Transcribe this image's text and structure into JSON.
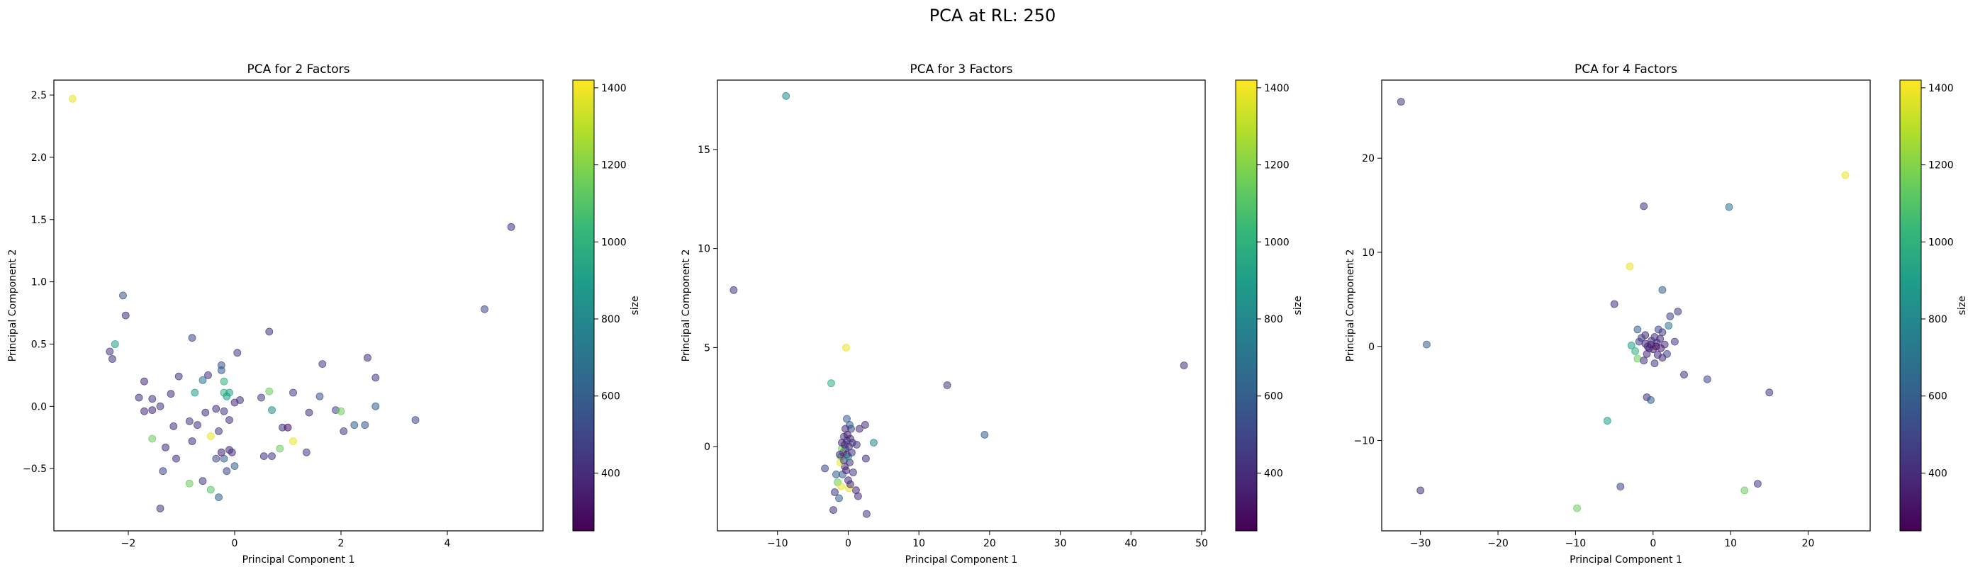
{
  "figure": {
    "title": "PCA at RL: 250"
  },
  "colormap": {
    "name": "viridis",
    "stops": [
      "#440154",
      "#482878",
      "#3e4989",
      "#31688e",
      "#26828e",
      "#1f9e89",
      "#35b779",
      "#6ece58",
      "#b5de2b",
      "#fde725"
    ]
  },
  "chart_data": [
    {
      "type": "scatter",
      "title": "PCA for 2 Factors",
      "xlabel": "Principal Component 1",
      "ylabel": "Principal Component 2",
      "xlim": [
        -3.4,
        5.8
      ],
      "ylim": [
        -1.0,
        2.62
      ],
      "xticks": [
        -2,
        0,
        2,
        4
      ],
      "yticks": [
        -0.5,
        0.0,
        0.5,
        1.0,
        1.5,
        2.0,
        2.5
      ],
      "yticklabels": [
        "−0.5",
        "0.0",
        "0.5",
        "1.0",
        "1.5",
        "2.0",
        "2.5"
      ],
      "xticklabels": [
        "−2",
        "0",
        "2",
        "4"
      ],
      "colorbar": {
        "label": "size",
        "range": [
          250,
          1420
        ],
        "ticks": [
          400,
          600,
          800,
          1000,
          1200,
          1400
        ]
      },
      "points": [
        {
          "x": -3.05,
          "y": 2.47,
          "c": 1380
        },
        {
          "x": 5.2,
          "y": 1.44,
          "c": 420
        },
        {
          "x": 4.7,
          "y": 0.78,
          "c": 500
        },
        {
          "x": -2.1,
          "y": 0.89,
          "c": 550
        },
        {
          "x": -2.05,
          "y": 0.73,
          "c": 400
        },
        {
          "x": -2.25,
          "y": 0.5,
          "c": 900
        },
        {
          "x": -2.35,
          "y": 0.44,
          "c": 450
        },
        {
          "x": -2.3,
          "y": 0.38,
          "c": 420
        },
        {
          "x": -1.7,
          "y": 0.2,
          "c": 400
        },
        {
          "x": -1.55,
          "y": 0.06,
          "c": 450
        },
        {
          "x": -1.8,
          "y": 0.07,
          "c": 420
        },
        {
          "x": -1.7,
          "y": -0.04,
          "c": 400
        },
        {
          "x": -1.55,
          "y": -0.03,
          "c": 380
        },
        {
          "x": -1.4,
          "y": 0.0,
          "c": 450
        },
        {
          "x": -1.55,
          "y": -0.26,
          "c": 1150
        },
        {
          "x": -1.3,
          "y": -0.33,
          "c": 400
        },
        {
          "x": -1.35,
          "y": -0.52,
          "c": 500
        },
        {
          "x": -1.4,
          "y": -0.82,
          "c": 450
        },
        {
          "x": -1.15,
          "y": -0.16,
          "c": 420
        },
        {
          "x": -1.1,
          "y": -0.42,
          "c": 400
        },
        {
          "x": -1.2,
          "y": 0.1,
          "c": 400
        },
        {
          "x": -1.05,
          "y": 0.24,
          "c": 420
        },
        {
          "x": -0.8,
          "y": 0.55,
          "c": 500
        },
        {
          "x": -0.85,
          "y": -0.12,
          "c": 450
        },
        {
          "x": -0.7,
          "y": -0.15,
          "c": 420
        },
        {
          "x": -0.75,
          "y": 0.11,
          "c": 900
        },
        {
          "x": -0.6,
          "y": 0.21,
          "c": 700
        },
        {
          "x": -0.5,
          "y": 0.25,
          "c": 420
        },
        {
          "x": -0.55,
          "y": -0.05,
          "c": 400
        },
        {
          "x": -0.45,
          "y": -0.24,
          "c": 1380
        },
        {
          "x": -0.6,
          "y": -0.6,
          "c": 450
        },
        {
          "x": -0.8,
          "y": -0.28,
          "c": 400
        },
        {
          "x": -0.85,
          "y": -0.62,
          "c": 1150
        },
        {
          "x": -0.45,
          "y": -0.67,
          "c": 1100
        },
        {
          "x": -0.3,
          "y": -0.73,
          "c": 600
        },
        {
          "x": -0.35,
          "y": -0.42,
          "c": 500
        },
        {
          "x": -0.3,
          "y": -0.2,
          "c": 450
        },
        {
          "x": -0.25,
          "y": 0.33,
          "c": 550
        },
        {
          "x": -0.25,
          "y": 0.29,
          "c": 600
        },
        {
          "x": -0.2,
          "y": 0.2,
          "c": 1000
        },
        {
          "x": -0.1,
          "y": 0.11,
          "c": 900
        },
        {
          "x": -0.35,
          "y": -0.02,
          "c": 420
        },
        {
          "x": -0.2,
          "y": -0.04,
          "c": 450
        },
        {
          "x": -0.1,
          "y": -0.11,
          "c": 400
        },
        {
          "x": -0.1,
          "y": -0.35,
          "c": 380
        },
        {
          "x": -0.2,
          "y": -0.42,
          "c": 600
        },
        {
          "x": -0.25,
          "y": -0.37,
          "c": 350
        },
        {
          "x": -0.15,
          "y": -0.52,
          "c": 500
        },
        {
          "x": 0.0,
          "y": -0.48,
          "c": 600
        },
        {
          "x": -0.05,
          "y": -0.37,
          "c": 420
        },
        {
          "x": 0.1,
          "y": 0.05,
          "c": 420
        },
        {
          "x": 0.0,
          "y": 0.03,
          "c": 400
        },
        {
          "x": 0.05,
          "y": 0.43,
          "c": 450
        },
        {
          "x": -0.2,
          "y": 0.11,
          "c": 1000
        },
        {
          "x": -0.15,
          "y": 0.08,
          "c": 900
        },
        {
          "x": 0.65,
          "y": 0.6,
          "c": 420
        },
        {
          "x": 0.5,
          "y": 0.07,
          "c": 450
        },
        {
          "x": 0.65,
          "y": 0.12,
          "c": 1150
        },
        {
          "x": 0.7,
          "y": -0.03,
          "c": 800
        },
        {
          "x": 0.55,
          "y": -0.4,
          "c": 420
        },
        {
          "x": 0.7,
          "y": -0.4,
          "c": 450
        },
        {
          "x": 0.85,
          "y": -0.34,
          "c": 1150
        },
        {
          "x": 0.9,
          "y": -0.17,
          "c": 420
        },
        {
          "x": 1.0,
          "y": -0.17,
          "c": 300
        },
        {
          "x": 1.1,
          "y": -0.28,
          "c": 1380
        },
        {
          "x": 1.1,
          "y": 0.11,
          "c": 450
        },
        {
          "x": 1.4,
          "y": -0.05,
          "c": 420
        },
        {
          "x": 1.35,
          "y": -0.37,
          "c": 450
        },
        {
          "x": 1.6,
          "y": 0.08,
          "c": 550
        },
        {
          "x": 1.65,
          "y": 0.34,
          "c": 450
        },
        {
          "x": 1.9,
          "y": -0.03,
          "c": 500
        },
        {
          "x": 2.0,
          "y": -0.04,
          "c": 1150
        },
        {
          "x": 2.05,
          "y": -0.2,
          "c": 450
        },
        {
          "x": 2.25,
          "y": -0.15,
          "c": 600
        },
        {
          "x": 2.45,
          "y": -0.15,
          "c": 550
        },
        {
          "x": 2.5,
          "y": 0.39,
          "c": 420
        },
        {
          "x": 2.65,
          "y": 0.23,
          "c": 450
        },
        {
          "x": 2.65,
          "y": 0.0,
          "c": 600
        },
        {
          "x": 3.4,
          "y": -0.11,
          "c": 500
        }
      ]
    },
    {
      "type": "scatter",
      "title": "PCA for 3 Factors",
      "xlabel": "Principal Component 1",
      "ylabel": "Principal Component 2",
      "xlim": [
        -18.5,
        50.5
      ],
      "ylim": [
        -4.25,
        18.5
      ],
      "xticks": [
        -10,
        0,
        10,
        20,
        30,
        40,
        50
      ],
      "xticklabels": [
        "−10",
        "0",
        "10",
        "20",
        "30",
        "40",
        "50"
      ],
      "yticks": [
        0,
        5,
        10,
        15
      ],
      "yticklabels": [
        "0",
        "5",
        "10",
        "15"
      ],
      "colorbar": {
        "label": "size",
        "range": [
          250,
          1420
        ],
        "ticks": [
          400,
          600,
          800,
          1000,
          1200,
          1400
        ]
      },
      "points": [
        {
          "x": -8.8,
          "y": 17.7,
          "c": 800
        },
        {
          "x": -16.2,
          "y": 7.9,
          "c": 450
        },
        {
          "x": 47.5,
          "y": 4.1,
          "c": 420
        },
        {
          "x": 14.0,
          "y": 3.1,
          "c": 450
        },
        {
          "x": 19.3,
          "y": 0.6,
          "c": 600
        },
        {
          "x": -0.3,
          "y": 5.0,
          "c": 1380
        },
        {
          "x": -2.4,
          "y": 3.2,
          "c": 1000
        },
        {
          "x": 3.6,
          "y": 0.2,
          "c": 800
        },
        {
          "x": 2.4,
          "y": 1.1,
          "c": 420
        },
        {
          "x": 1.6,
          "y": 0.9,
          "c": 400
        },
        {
          "x": 1.2,
          "y": 0.1,
          "c": 450
        },
        {
          "x": 2.5,
          "y": -0.6,
          "c": 420
        },
        {
          "x": 1.1,
          "y": -2.2,
          "c": 380
        },
        {
          "x": 1.4,
          "y": -2.5,
          "c": 400
        },
        {
          "x": 2.6,
          "y": -3.4,
          "c": 450
        },
        {
          "x": -2.1,
          "y": -3.2,
          "c": 420
        },
        {
          "x": -3.3,
          "y": -1.1,
          "c": 500
        },
        {
          "x": -1.9,
          "y": -2.3,
          "c": 450
        },
        {
          "x": -1.5,
          "y": -1.8,
          "c": 1150
        },
        {
          "x": -1.7,
          "y": -1.4,
          "c": 600
        },
        {
          "x": -1.0,
          "y": -2.0,
          "c": 1380
        },
        {
          "x": 0.1,
          "y": -2.1,
          "c": 1380
        },
        {
          "x": -0.8,
          "y": -1.4,
          "c": 600
        },
        {
          "x": 0.0,
          "y": -1.7,
          "c": 420
        },
        {
          "x": -0.5,
          "y": -1.0,
          "c": 400
        },
        {
          "x": -1.1,
          "y": -0.8,
          "c": 1380
        },
        {
          "x": -1.0,
          "y": -0.5,
          "c": 1150
        },
        {
          "x": -0.6,
          "y": -0.7,
          "c": 450
        },
        {
          "x": 0.2,
          "y": -0.8,
          "c": 420
        },
        {
          "x": -0.2,
          "y": -0.4,
          "c": 380
        },
        {
          "x": -0.7,
          "y": -0.3,
          "c": 350
        },
        {
          "x": -0.4,
          "y": -0.1,
          "c": 400
        },
        {
          "x": -0.9,
          "y": -0.1,
          "c": 1150
        },
        {
          "x": -0.5,
          "y": 0.1,
          "c": 420
        },
        {
          "x": 0.1,
          "y": 0.0,
          "c": 450
        },
        {
          "x": -0.2,
          "y": 0.3,
          "c": 380
        },
        {
          "x": 0.3,
          "y": 0.4,
          "c": 420
        },
        {
          "x": -0.6,
          "y": 0.5,
          "c": 450
        },
        {
          "x": 0.4,
          "y": 0.9,
          "c": 500
        },
        {
          "x": -0.2,
          "y": 1.4,
          "c": 600
        },
        {
          "x": 0.2,
          "y": 1.1,
          "c": 600
        },
        {
          "x": -0.4,
          "y": 0.9,
          "c": 400
        },
        {
          "x": 0.0,
          "y": -0.5,
          "c": 800
        },
        {
          "x": 0.5,
          "y": -0.3,
          "c": 420
        },
        {
          "x": -0.3,
          "y": -1.2,
          "c": 380
        },
        {
          "x": 0.7,
          "y": -1.3,
          "c": 450
        },
        {
          "x": -1.3,
          "y": -2.6,
          "c": 600
        },
        {
          "x": 0.3,
          "y": -1.9,
          "c": 420
        },
        {
          "x": -0.9,
          "y": 0.2,
          "c": 380
        },
        {
          "x": 0.6,
          "y": 0.2,
          "c": 420
        },
        {
          "x": -0.1,
          "y": 0.6,
          "c": 350
        },
        {
          "x": -1.2,
          "y": -0.4,
          "c": 400
        }
      ]
    },
    {
      "type": "scatter",
      "title": "PCA for 4 Factors",
      "xlabel": "Principal Component 1",
      "ylabel": "Principal Component 2",
      "xlim": [
        -35.0,
        28.0
      ],
      "ylim": [
        -19.6,
        28.3
      ],
      "xticks": [
        -30,
        -20,
        -10,
        0,
        10,
        20
      ],
      "xticklabels": [
        "−30",
        "−20",
        "−10",
        "0",
        "10",
        "20"
      ],
      "yticks": [
        -10,
        0,
        10,
        20
      ],
      "yticklabels": [
        "−10",
        "0",
        "10",
        "20"
      ],
      "colorbar": {
        "label": "size",
        "range": [
          250,
          1420
        ],
        "ticks": [
          400,
          600,
          800,
          1000,
          1200,
          1400
        ]
      },
      "points": [
        {
          "x": -32.5,
          "y": 26.0,
          "c": 450
        },
        {
          "x": 24.8,
          "y": 18.2,
          "c": 1380
        },
        {
          "x": -1.2,
          "y": 14.9,
          "c": 420
        },
        {
          "x": 9.8,
          "y": 14.8,
          "c": 700
        },
        {
          "x": -3.0,
          "y": 8.5,
          "c": 1380
        },
        {
          "x": -29.2,
          "y": 0.2,
          "c": 600
        },
        {
          "x": -30.0,
          "y": -15.3,
          "c": 420
        },
        {
          "x": -9.8,
          "y": -17.2,
          "c": 1150
        },
        {
          "x": 11.8,
          "y": -15.3,
          "c": 1150
        },
        {
          "x": 13.5,
          "y": -14.6,
          "c": 450
        },
        {
          "x": -4.2,
          "y": -14.9,
          "c": 500
        },
        {
          "x": 15.0,
          "y": -4.9,
          "c": 450
        },
        {
          "x": 7.0,
          "y": -3.5,
          "c": 500
        },
        {
          "x": 4.0,
          "y": -3.0,
          "c": 420
        },
        {
          "x": -5.9,
          "y": -7.9,
          "c": 900
        },
        {
          "x": -0.8,
          "y": -5.4,
          "c": 420
        },
        {
          "x": -0.3,
          "y": -5.7,
          "c": 600
        },
        {
          "x": 1.2,
          "y": 6.0,
          "c": 600
        },
        {
          "x": -5.0,
          "y": 4.5,
          "c": 420
        },
        {
          "x": 2.2,
          "y": 3.2,
          "c": 500
        },
        {
          "x": 3.2,
          "y": 3.7,
          "c": 450
        },
        {
          "x": 2.0,
          "y": 2.2,
          "c": 700
        },
        {
          "x": -2.0,
          "y": 1.8,
          "c": 600
        },
        {
          "x": 1.2,
          "y": 1.5,
          "c": 450
        },
        {
          "x": -1.0,
          "y": 1.2,
          "c": 400
        },
        {
          "x": 0.2,
          "y": 1.0,
          "c": 420
        },
        {
          "x": -1.8,
          "y": 0.5,
          "c": 500
        },
        {
          "x": -1.0,
          "y": 0.3,
          "c": 380
        },
        {
          "x": -0.3,
          "y": 0.2,
          "c": 350
        },
        {
          "x": 0.5,
          "y": 0.4,
          "c": 400
        },
        {
          "x": 1.5,
          "y": 0.2,
          "c": 420
        },
        {
          "x": 2.8,
          "y": 0.5,
          "c": 450
        },
        {
          "x": -2.8,
          "y": 0.1,
          "c": 900
        },
        {
          "x": -2.3,
          "y": -0.5,
          "c": 1000
        },
        {
          "x": -2.0,
          "y": -1.3,
          "c": 1150
        },
        {
          "x": -0.8,
          "y": -0.8,
          "c": 380
        },
        {
          "x": 0.0,
          "y": -0.3,
          "c": 350
        },
        {
          "x": 0.6,
          "y": -0.9,
          "c": 400
        },
        {
          "x": 1.2,
          "y": -1.2,
          "c": 420
        },
        {
          "x": 0.2,
          "y": -1.8,
          "c": 450
        },
        {
          "x": 1.8,
          "y": -0.8,
          "c": 500
        },
        {
          "x": -1.2,
          "y": -1.5,
          "c": 420
        },
        {
          "x": 0.4,
          "y": 0.0,
          "c": 300
        },
        {
          "x": -0.5,
          "y": -0.2,
          "c": 330
        },
        {
          "x": 0.9,
          "y": 0.8,
          "c": 380
        },
        {
          "x": -1.5,
          "y": 0.9,
          "c": 450
        },
        {
          "x": 0.7,
          "y": 1.8,
          "c": 500
        },
        {
          "x": -0.2,
          "y": 0.6,
          "c": 420
        },
        {
          "x": 1.0,
          "y": -0.2,
          "c": 350
        },
        {
          "x": -0.7,
          "y": 0.0,
          "c": 400
        }
      ]
    }
  ]
}
